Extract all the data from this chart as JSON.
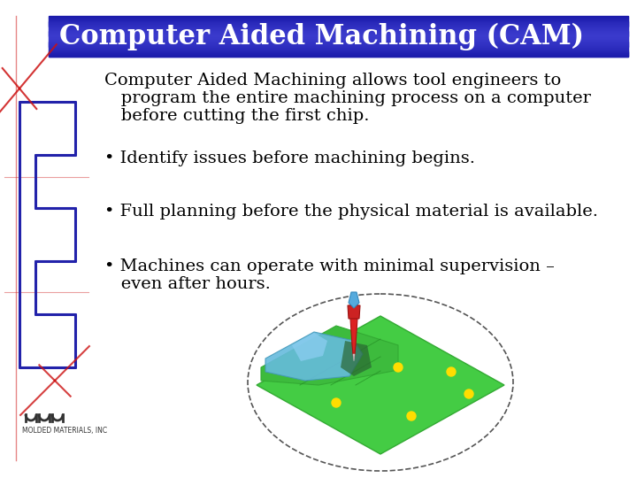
{
  "title": "Computer Aided Machining (CAM)",
  "title_bg_color_dark": "#1a1aaa",
  "title_bg_color_mid": "#3a3acc",
  "title_text_color": "#ffffff",
  "bg_color": "#ffffff",
  "body_text_color": "#000000",
  "intro_line1": "Computer Aided Machining allows tool engineers to",
  "intro_line2": "   program the entire machining process on a computer",
  "intro_line3": "   before cutting the first chip.",
  "bullet1": "Identify issues before machining begins.",
  "bullet2": "Full planning before the physical material is available.",
  "bullet3a": "Machines can operate with minimal supervision –",
  "bullet3b": "   even after hours.",
  "left_blue": "#2222aa",
  "left_red": "#cc1111",
  "title_fontsize": 22,
  "body_fontsize": 14,
  "logo_text": "MOLDED MATERIALS, INC"
}
